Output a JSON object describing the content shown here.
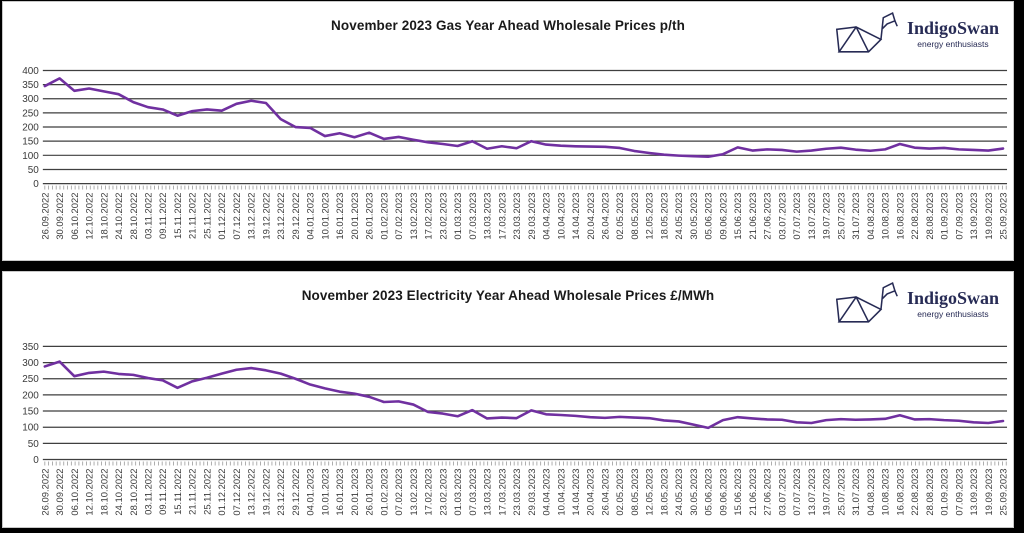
{
  "logo": {
    "name": "IndigoSwan",
    "tagline": "energy enthusiasts",
    "color": "#272b55"
  },
  "colors": {
    "line": "#7030A0",
    "gridline": "#3f3f3f",
    "tick": "#9a9a9a",
    "axis_text": "#3a3a3a",
    "panel_background": "#ffffff",
    "frame": "#000000"
  },
  "chart_data": [
    {
      "type": "line",
      "title": "November 2023 Gas Year Ahead Wholesale Prices p/th",
      "unit": "p/th",
      "ylim": [
        0,
        400
      ],
      "ytick_step": 50,
      "grid": true,
      "legend": "none",
      "line_color": "#7030A0",
      "categories": [
        "26.09.2022",
        "30.09.2022",
        "06.10.2022",
        "12.10.2022",
        "18.10.2022",
        "24.10.2022",
        "28.10.2022",
        "03.11.2022",
        "09.11.2022",
        "15.11.2022",
        "21.11.2022",
        "25.11.2022",
        "01.12.2022",
        "07.12.2022",
        "13.12.2022",
        "19.12.2022",
        "23.12.2022",
        "29.12.2022",
        "04.01.2023",
        "10.01.2023",
        "16.01.2023",
        "20.01.2023",
        "26.01.2023",
        "01.02.2023",
        "07.02.2023",
        "13.02.2023",
        "17.02.2023",
        "23.02.2023",
        "01.03.2023",
        "07.03.2023",
        "13.03.2023",
        "17.03.2023",
        "23.03.2023",
        "29.03.2023",
        "04.04.2023",
        "10.04.2023",
        "14.04.2023",
        "20.04.2023",
        "26.04.2023",
        "02.05.2023",
        "08.05.2023",
        "12.05.2023",
        "18.05.2023",
        "24.05.2023",
        "30.05.2023",
        "05.06.2023",
        "09.06.2023",
        "15.06.2023",
        "21.06.2023",
        "27.06.2023",
        "03.07.2023",
        "07.07.2023",
        "13.07.2023",
        "19.07.2023",
        "25.07.2023",
        "31.07.2023",
        "04.08.2023",
        "10.08.2023",
        "16.08.2023",
        "22.08.2023",
        "28.08.2023",
        "01.09.2023",
        "07.09.2023",
        "13.09.2023",
        "19.09.2023",
        "25.09.2023"
      ],
      "values": [
        345,
        372,
        328,
        336,
        326,
        316,
        288,
        270,
        262,
        240,
        256,
        262,
        258,
        282,
        293,
        285,
        228,
        200,
        197,
        168,
        178,
        164,
        180,
        158,
        165,
        155,
        146,
        140,
        133,
        150,
        123,
        132,
        125,
        150,
        138,
        134,
        132,
        131,
        130,
        126,
        115,
        108,
        102,
        99,
        97,
        95,
        104,
        128,
        117,
        121,
        119,
        113,
        117,
        123,
        127,
        120,
        116,
        121,
        140,
        127,
        124,
        126,
        121,
        119,
        117,
        124
      ]
    },
    {
      "type": "line",
      "title": "November 2023 Electricity Year Ahead Wholesale Prices £/MWh",
      "unit": "£/MWh",
      "ylim": [
        0,
        350
      ],
      "ytick_step": 50,
      "grid": true,
      "legend": "none",
      "line_color": "#7030A0",
      "categories": [
        "26.09.2022",
        "30.09.2022",
        "06.10.2022",
        "12.10.2022",
        "18.10.2022",
        "24.10.2022",
        "28.10.2022",
        "03.11.2022",
        "09.11.2022",
        "15.11.2022",
        "21.11.2022",
        "25.11.2022",
        "01.12.2022",
        "07.12.2022",
        "13.12.2022",
        "19.12.2022",
        "23.12.2022",
        "29.12.2022",
        "04.01.2023",
        "10.01.2023",
        "16.01.2023",
        "20.01.2023",
        "26.01.2023",
        "01.02.2023",
        "07.02.2023",
        "13.02.2023",
        "17.02.2023",
        "23.02.2023",
        "01.03.2023",
        "07.03.2023",
        "13.03.2023",
        "17.03.2023",
        "23.03.2023",
        "29.03.2023",
        "04.04.2023",
        "10.04.2023",
        "14.04.2023",
        "20.04.2023",
        "26.04.2023",
        "02.05.2023",
        "08.05.2023",
        "12.05.2023",
        "18.05.2023",
        "24.05.2023",
        "30.05.2023",
        "05.06.2023",
        "09.06.2023",
        "15.06.2023",
        "21.06.2023",
        "27.06.2023",
        "03.07.2023",
        "07.07.2023",
        "13.07.2023",
        "19.07.2023",
        "25.07.2023",
        "31.07.2023",
        "04.08.2023",
        "10.08.2023",
        "16.08.2023",
        "22.08.2023",
        "28.08.2023",
        "01.09.2023",
        "07.09.2023",
        "13.09.2023",
        "19.09.2023",
        "25.09.2023"
      ],
      "values": [
        288,
        303,
        258,
        268,
        272,
        265,
        262,
        252,
        245,
        222,
        242,
        253,
        266,
        278,
        283,
        276,
        266,
        250,
        232,
        220,
        210,
        204,
        194,
        178,
        180,
        170,
        147,
        142,
        134,
        153,
        127,
        130,
        128,
        152,
        140,
        138,
        135,
        131,
        129,
        132,
        130,
        128,
        121,
        118,
        108,
        98,
        122,
        131,
        127,
        124,
        123,
        115,
        113,
        122,
        125,
        123,
        124,
        126,
        137,
        124,
        125,
        122,
        120,
        115,
        113,
        119
      ]
    }
  ]
}
